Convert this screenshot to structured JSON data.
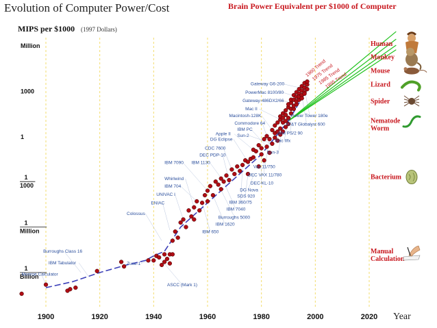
{
  "header": {
    "title": "Evolution of Computer Power/Cost",
    "right_title": "Brain Power Equivalent per $1000 of Computer",
    "ylabel": "MIPS per $1000",
    "ylabel_note": "(1997 Dollars)"
  },
  "colors": {
    "point": "#b00d14",
    "trend": "#22c21f",
    "fit": "#3b3fb8",
    "creature_label": "#c8171e",
    "computer_label": "#2a4e9c"
  },
  "chart_data": {
    "type": "scatter",
    "xlabel": "Year",
    "x_ticks": [
      "1900",
      "1920",
      "1940",
      "1960",
      "1980",
      "2000",
      "2020"
    ],
    "xlim": [
      1890,
      2035
    ],
    "y_scale": "log10",
    "ylim_log10": [
      -10.5,
      7.3
    ],
    "y_ticks": [
      {
        "log10": 6,
        "label": [
          "Million"
        ]
      },
      {
        "log10": 3,
        "label": [
          "1000"
        ]
      },
      {
        "log10": 0,
        "label": [
          "1"
        ]
      },
      {
        "log10": -3,
        "label": [
          "1",
          "1000"
        ]
      },
      {
        "log10": -6,
        "label": [
          "1",
          "Million"
        ]
      },
      {
        "log10": -9,
        "label": [
          "1",
          "Billion"
        ]
      }
    ],
    "grid": "vertical dashed, yellow",
    "points_log10": [
      [
        1891,
        -10.4
      ],
      [
        1900,
        -9.8
      ],
      [
        1908,
        -10.2
      ],
      [
        1909,
        -10.1
      ],
      [
        1911,
        -10.0
      ],
      [
        1919,
        -8.9
      ],
      [
        1928,
        -8.3
      ],
      [
        1929,
        -8.6
      ],
      [
        1938,
        -8.2
      ],
      [
        1940,
        -8.2
      ],
      [
        1941,
        -7.9
      ],
      [
        1942,
        -8.0
      ],
      [
        1943,
        -8.5
      ],
      [
        1944,
        -8.3
      ],
      [
        1944,
        -7.8
      ],
      [
        1945,
        -8.1
      ],
      [
        1946,
        -7.8
      ],
      [
        1946,
        -8.4
      ],
      [
        1947,
        -7.8
      ],
      [
        1947,
        -6.9
      ],
      [
        1948,
        -6.3
      ],
      [
        1949,
        -6.7
      ],
      [
        1950,
        -5.7
      ],
      [
        1951,
        -5.5
      ],
      [
        1952,
        -6.0
      ],
      [
        1953,
        -4.9
      ],
      [
        1954,
        -5.3
      ],
      [
        1955,
        -5.5
      ],
      [
        1955,
        -4.7
      ],
      [
        1956,
        -4.3
      ],
      [
        1957,
        -4.9
      ],
      [
        1958,
        -4.4
      ],
      [
        1959,
        -3.9
      ],
      [
        1960,
        -3.6
      ],
      [
        1960,
        -4.3
      ],
      [
        1961,
        -3.3
      ],
      [
        1962,
        -3.9
      ],
      [
        1963,
        -3.0
      ],
      [
        1964,
        -3.2
      ],
      [
        1965,
        -2.8
      ],
      [
        1965,
        -3.5
      ],
      [
        1966,
        -3.0
      ],
      [
        1967,
        -2.6
      ],
      [
        1968,
        -2.9
      ],
      [
        1969,
        -2.2
      ],
      [
        1970,
        -2.5
      ],
      [
        1971,
        -2.0
      ],
      [
        1972,
        -2.3
      ],
      [
        1973,
        -1.9
      ],
      [
        1974,
        -1.6
      ],
      [
        1975,
        -1.7
      ],
      [
        1975,
        -2.5
      ],
      [
        1976,
        -1.5
      ],
      [
        1977,
        -0.9
      ],
      [
        1977,
        -1.4
      ],
      [
        1978,
        -1.0
      ],
      [
        1979,
        -0.6
      ],
      [
        1979,
        -2.0
      ],
      [
        1980,
        -0.8
      ],
      [
        1980,
        -1.2
      ],
      [
        1981,
        -0.2
      ],
      [
        1981,
        -1.6
      ],
      [
        1982,
        0.0
      ],
      [
        1982,
        -0.7
      ],
      [
        1983,
        -0.2
      ],
      [
        1983,
        -1.1
      ],
      [
        1984,
        0.4
      ],
      [
        1984,
        -0.5
      ],
      [
        1985,
        0.7
      ],
      [
        1985,
        -0.1
      ],
      [
        1985,
        0.2
      ],
      [
        1986,
        0.9
      ],
      [
        1986,
        0.3
      ],
      [
        1986,
        -0.3
      ],
      [
        1987,
        1.1
      ],
      [
        1987,
        0.5
      ],
      [
        1987,
        0.1
      ],
      [
        1987,
        1.3
      ],
      [
        1988,
        1.5
      ],
      [
        1988,
        0.9
      ],
      [
        1988,
        0.3
      ],
      [
        1988,
        1.2
      ],
      [
        1989,
        1.7
      ],
      [
        1989,
        1.0
      ],
      [
        1989,
        0.6
      ],
      [
        1989,
        1.4
      ],
      [
        1990,
        1.9
      ],
      [
        1990,
        1.2
      ],
      [
        1990,
        2.1
      ],
      [
        1990,
        0.8
      ],
      [
        1991,
        2.2
      ],
      [
        1991,
        1.5
      ],
      [
        1991,
        1.8
      ],
      [
        1991,
        2.4
      ],
      [
        1992,
        2.4
      ],
      [
        1992,
        1.8
      ],
      [
        1992,
        2.7
      ],
      [
        1992,
        2.0
      ],
      [
        1993,
        2.6
      ],
      [
        1993,
        2.1
      ],
      [
        1993,
        2.9
      ],
      [
        1993,
        2.3
      ],
      [
        1994,
        2.8
      ],
      [
        1994,
        2.4
      ],
      [
        1994,
        3.1
      ],
      [
        1994,
        2.6
      ],
      [
        1995,
        3.0
      ],
      [
        1995,
        2.7
      ],
      [
        1995,
        3.3
      ],
      [
        1995,
        2.5
      ],
      [
        1996,
        3.2
      ],
      [
        1996,
        2.9
      ],
      [
        1996,
        3.5
      ],
      [
        1996,
        2.8
      ],
      [
        1997,
        3.4
      ],
      [
        1997,
        3.1
      ],
      [
        1997,
        3.6
      ]
    ],
    "fit_line_log10": [
      [
        1900,
        -10.0
      ],
      [
        1910,
        -9.6
      ],
      [
        1920,
        -9.0
      ],
      [
        1930,
        -8.5
      ],
      [
        1937,
        -8.2
      ],
      [
        1940,
        -7.9
      ],
      [
        1944,
        -7.6
      ],
      [
        1950,
        -6.0
      ],
      [
        1960,
        -4.4
      ],
      [
        1970,
        -2.8
      ],
      [
        1980,
        -1.2
      ],
      [
        1990,
        1.0
      ],
      [
        1997,
        3.1
      ]
    ],
    "trend_lines": [
      {
        "name": "1960 Trend",
        "start": [
          1990,
          1.0
        ],
        "end": [
          2030,
          6.9
        ]
      },
      {
        "name": "1975 Trend",
        "start": [
          1990,
          1.0
        ],
        "end": [
          2030,
          6.4
        ]
      },
      {
        "name": "1985 Trend",
        "start": [
          1990,
          1.0
        ],
        "end": [
          2030,
          6.0
        ]
      },
      {
        "name": "1995 Trend",
        "start": [
          1990,
          1.0
        ],
        "end": [
          2030,
          5.7
        ]
      }
    ],
    "computer_labels": [
      {
        "text": "Gateway G6-200",
        "year": 1976,
        "log10": 3.35,
        "to": [
          1994,
          3.2
        ]
      },
      {
        "text": "PowerMac 8100/80",
        "year": 1974,
        "log10": 2.8,
        "to": [
          1993,
          2.6
        ]
      },
      {
        "text": "Gateway-486DX2/66",
        "year": 1973,
        "log10": 2.25,
        "to": [
          1991,
          2.2
        ]
      },
      {
        "text": "Mac II",
        "year": 1974,
        "log10": 1.7,
        "to": [
          1987,
          1.1
        ]
      },
      {
        "text": "Macintosh-128K",
        "year": 1968,
        "log10": 1.25,
        "to": [
          1984,
          0.4
        ]
      },
      {
        "text": "Commodore 64",
        "year": 1970,
        "log10": 0.75,
        "to": [
          1982,
          0.0
        ]
      },
      {
        "text": "IBM PC",
        "year": 1971,
        "log10": 0.35,
        "to": [
          1982,
          -0.7
        ]
      },
      {
        "text": "Sun-2",
        "year": 1971,
        "log10": -0.05,
        "to": [
          1984,
          -0.5
        ]
      },
      {
        "text": "Apple II",
        "year": 1963,
        "log10": 0.05,
        "to": [
          1977,
          -0.9
        ]
      },
      {
        "text": "DG Eclipse",
        "year": 1961,
        "log10": -0.3,
        "to": [
          1975,
          -1.7
        ]
      },
      {
        "text": "CDC 7600",
        "year": 1959,
        "log10": -0.9,
        "to": [
          1969,
          -2.2
        ]
      },
      {
        "text": "DEC PDP-10",
        "year": 1957,
        "log10": -1.35,
        "to": [
          1968,
          -2.9
        ]
      },
      {
        "text": "IBM 7090",
        "year": 1944,
        "log10": -1.85,
        "to": [
          1960,
          -3.6
        ]
      },
      {
        "text": "IBM 1130",
        "year": 1954,
        "log10": -1.85,
        "to": [
          1966,
          -3.0
        ]
      },
      {
        "text": "Whirlwind",
        "year": 1944,
        "log10": -2.9,
        "to": [
          1955,
          -4.7
        ]
      },
      {
        "text": "IBM 704",
        "year": 1944,
        "log10": -3.4,
        "to": [
          1956,
          -4.3
        ]
      },
      {
        "text": "UNIVAC I",
        "year": 1941,
        "log10": -3.95,
        "to": [
          1951,
          -5.5
        ]
      },
      {
        "text": "ENIAC",
        "year": 1939,
        "log10": -4.5,
        "to": [
          1946,
          -6.2
        ]
      },
      {
        "text": "Colossus",
        "year": 1930,
        "log10": -5.2,
        "to": [
          1943,
          -6.9
        ]
      },
      {
        "text": "Burroughs Class 16",
        "year": 1899,
        "log10": -7.7,
        "to": [
          1913,
          -9.0
        ]
      },
      {
        "text": "IBM Tabulator",
        "year": 1901,
        "log10": -8.45,
        "to": [
          1916,
          -9.3
        ]
      },
      {
        "text": "Monroe Calculator",
        "year": 1891,
        "log10": -9.2,
        "to": [
          1900,
          -9.8
        ]
      },
      {
        "text": "Zuse-1",
        "year": 1930,
        "log10": -8.5,
        "to": [
          1938,
          -8.2
        ]
      },
      {
        "text": "ASCC (Mark 1)",
        "year": 1945,
        "log10": -9.9,
        "to": [
          1942,
          -8.0
        ]
      },
      {
        "text": "Power Tower 180e",
        "year": 1991,
        "log10": 1.25,
        "to": [
          1996,
          3.1
        ]
      },
      {
        "text": "AT&T Globalyst 600",
        "year": 1989,
        "log10": 0.7,
        "to": [
          1995,
          2.7
        ]
      },
      {
        "text": "IBM PS/2 90",
        "year": 1986,
        "log10": 0.1,
        "to": [
          1991,
          1.5
        ]
      },
      {
        "text": "Mac IIfx",
        "year": 1985,
        "log10": -0.4,
        "to": [
          1990,
          1.2
        ]
      },
      {
        "text": "Sun-3",
        "year": 1982,
        "log10": -1.15,
        "to": [
          1988,
          0.9
        ]
      },
      {
        "text": "Vax 11/750",
        "year": 1977,
        "log10": -2.1,
        "to": [
          1983,
          -0.2
        ]
      },
      {
        "text": "DEC VAX 11/780",
        "year": 1975,
        "log10": -2.65,
        "to": [
          1981,
          -1.6
        ]
      },
      {
        "text": "DEC-KL-10",
        "year": 1976,
        "log10": -3.2,
        "to": [
          1980,
          -2.0
        ]
      },
      {
        "text": "DG Nova",
        "year": 1972,
        "log10": -3.65,
        "to": [
          1977,
          -2.6
        ]
      },
      {
        "text": "SDS 920",
        "year": 1971,
        "log10": -4.05,
        "to": [
          1975,
          -2.5
        ]
      },
      {
        "text": "IBM 360/75",
        "year": 1968,
        "log10": -4.45,
        "to": [
          1973,
          -1.9
        ]
      },
      {
        "text": "IBM 7040",
        "year": 1967,
        "log10": -4.9,
        "to": [
          1966,
          -3.0
        ]
      },
      {
        "text": "Burroughs 5000",
        "year": 1964,
        "log10": -5.45,
        "to": [
          1964,
          -3.2
        ]
      },
      {
        "text": "IBM 1620",
        "year": 1963,
        "log10": -5.9,
        "to": [
          1962,
          -3.9
        ]
      },
      {
        "text": "IBM 650",
        "year": 1958,
        "log10": -6.4,
        "to": [
          1958,
          -4.4
        ]
      }
    ],
    "creatures": [
      {
        "label": [
          "Human"
        ],
        "log10": 6.1,
        "icon": "human-icon"
      },
      {
        "label": [
          "Monkey"
        ],
        "log10": 5.2,
        "icon": "monkey-icon"
      },
      {
        "label": [
          "Mouse"
        ],
        "log10": 4.3,
        "icon": "mouse-icon"
      },
      {
        "label": [
          "Lizard"
        ],
        "log10": 3.4,
        "icon": "lizard-icon"
      },
      {
        "label": [
          "Spider"
        ],
        "log10": 2.3,
        "icon": "spider-icon"
      },
      {
        "label": [
          "Nematode",
          "Worm"
        ],
        "log10": 1.0,
        "icon": "worm-icon"
      },
      {
        "label": [
          "Bacterium"
        ],
        "log10": -2.7,
        "icon": "bacterium-icon"
      },
      {
        "label": [
          "Manual",
          "Calculation"
        ],
        "log10": -7.6,
        "icon": "hand-writing-icon"
      }
    ]
  }
}
